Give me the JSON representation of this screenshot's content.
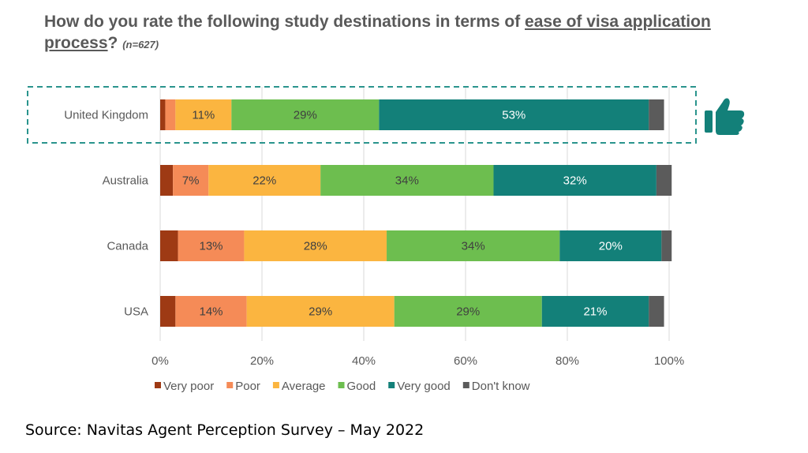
{
  "title": {
    "part1": "How do you rate the following study destinations in terms of ",
    "underlined1": "ease of visa application",
    "underlined2": "process",
    "part2": "?",
    "sample": "(n=627)"
  },
  "source": "Source: Navitas Agent Perception Survey – May 2022",
  "icons": {
    "highlight": "thumbs-up-icon"
  },
  "colors": {
    "very_poor": "#9e3a14",
    "poor": "#f58b57",
    "average": "#fbb540",
    "good": "#6dbe4f",
    "very_good": "#138079",
    "dont_know": "#5b5b5b",
    "highlight_border": "#2a948d"
  },
  "chart_data": {
    "type": "bar",
    "orientation": "horizontal",
    "stacked": true,
    "categories": [
      "United Kingdom",
      "Australia",
      "Canada",
      "USA"
    ],
    "highlight_category": "United Kingdom",
    "xlim": [
      0,
      100
    ],
    "x_ticks": [
      "0%",
      "20%",
      "40%",
      "60%",
      "80%",
      "100%"
    ],
    "legend_position": "bottom",
    "series": [
      {
        "name": "Very poor",
        "color": "#9e3a14",
        "values": [
          1,
          2.5,
          3.5,
          3
        ],
        "labels": [
          "",
          "",
          "",
          ""
        ]
      },
      {
        "name": "Poor",
        "color": "#f58b57",
        "values": [
          2,
          7,
          13,
          14
        ],
        "labels": [
          "",
          "7%",
          "13%",
          "14%"
        ]
      },
      {
        "name": "Average",
        "color": "#fbb540",
        "values": [
          11,
          22,
          28,
          29
        ],
        "labels": [
          "11%",
          "22%",
          "28%",
          "29%"
        ]
      },
      {
        "name": "Good",
        "color": "#6dbe4f",
        "values": [
          29,
          34,
          34,
          29
        ],
        "labels": [
          "29%",
          "34%",
          "34%",
          "29%"
        ]
      },
      {
        "name": "Very good",
        "color": "#138079",
        "values": [
          53,
          32,
          20,
          21
        ],
        "labels": [
          "53%",
          "32%",
          "20%",
          "21%"
        ]
      },
      {
        "name": "Don't know",
        "color": "#5b5b5b",
        "values": [
          3,
          3,
          2,
          3
        ],
        "labels": [
          "",
          "",
          "",
          ""
        ]
      }
    ]
  }
}
